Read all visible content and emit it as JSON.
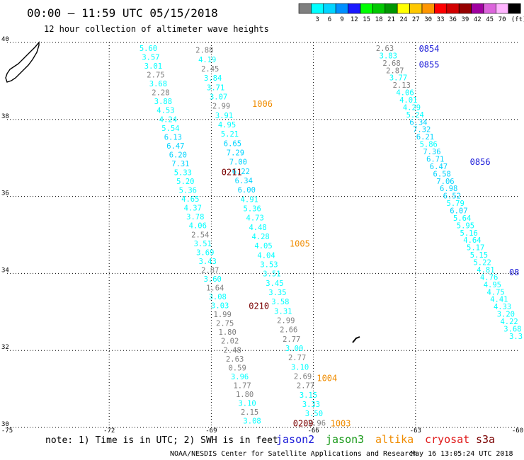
{
  "title": "00:00 – 11:59 UTC 05/15/2018",
  "subtitle": "12 hour collection of altimeter wave heights",
  "note": "note: 1) Time is in UTC; 2) SWH is in feet",
  "credit": "NOAA/NESDIS Center for Satellite Applications and Research",
  "timestamp": "May 16 13:05:24 UTC 2018",
  "satellites": [
    {
      "name": "jason2",
      "color": "#1a1ad8"
    },
    {
      "name": "jason3",
      "color": "#1a9a1a"
    },
    {
      "name": "altika",
      "color": "#f08c00"
    },
    {
      "name": "cryosat",
      "color": "#e01818"
    },
    {
      "name": "s3a",
      "color": "#7a0000"
    }
  ],
  "legend": {
    "unit": "(ft)",
    "bins": [
      {
        "label": "",
        "color": "#7f7f7f"
      },
      {
        "label": "3",
        "color": "#00ffff"
      },
      {
        "label": "6",
        "color": "#00d4ff"
      },
      {
        "label": "9",
        "color": "#0090ff"
      },
      {
        "label": "12",
        "color": "#1a1aff"
      },
      {
        "label": "15",
        "color": "#00ff00"
      },
      {
        "label": "18",
        "color": "#00c800"
      },
      {
        "label": "21",
        "color": "#009600"
      },
      {
        "label": "24",
        "color": "#ffff00"
      },
      {
        "label": "27",
        "color": "#ffc800"
      },
      {
        "label": "30",
        "color": "#ff9600"
      },
      {
        "label": "33",
        "color": "#ff0000"
      },
      {
        "label": "36",
        "color": "#d20000"
      },
      {
        "label": "39",
        "color": "#960000"
      },
      {
        "label": "42",
        "color": "#a000a0"
      },
      {
        "label": "45",
        "color": "#dc64dc"
      },
      {
        "label": "70",
        "color": "#ffb4ff"
      },
      {
        "label": "",
        "color": "#000000"
      }
    ]
  },
  "chart_data": {
    "type": "scatter",
    "xlim": [
      -75,
      -60
    ],
    "ylim": [
      30,
      40
    ],
    "xticks": [
      "-75",
      "-72",
      "-69",
      "-66",
      "-63",
      "-60"
    ],
    "yticks": [
      "40",
      "38",
      "36",
      "34",
      "32",
      "30"
    ],
    "grid": true,
    "track_labels": [
      {
        "text": "0854",
        "x": -62.6,
        "y": 39.76,
        "color": "#1a1ad8"
      },
      {
        "text": "0855",
        "x": -62.6,
        "y": 39.35,
        "color": "#1a1ad8"
      },
      {
        "text": "1006",
        "x": -67.5,
        "y": 38.33,
        "color": "#f08c00"
      },
      {
        "text": "0856",
        "x": -61.1,
        "y": 36.82,
        "color": "#1a1ad8"
      },
      {
        "text": "0211",
        "x": -68.4,
        "y": 36.55,
        "color": "#7a0000"
      },
      {
        "text": "1005",
        "x": -66.4,
        "y": 34.7,
        "color": "#f08c00"
      },
      {
        "text": "08",
        "x": -60.1,
        "y": 33.95,
        "color": "#1a1ad8"
      },
      {
        "text": "0210",
        "x": -67.6,
        "y": 33.08,
        "color": "#7a0000"
      },
      {
        "text": "1004",
        "x": -65.6,
        "y": 31.2,
        "color": "#f08c00"
      },
      {
        "text": "0209",
        "x": -66.3,
        "y": 30.03,
        "color": "#7a0000"
      },
      {
        "text": "1003",
        "x": -65.2,
        "y": 30.03,
        "color": "#f08c00"
      }
    ],
    "tracks": [
      {
        "name": "track-a",
        "x0": -70.85,
        "y0": 39.78,
        "x1": -67.8,
        "y1": 30.1,
        "values": [
          5.6,
          3.57,
          3.01,
          2.75,
          3.68,
          2.28,
          3.88,
          4.53,
          4.24,
          5.54,
          6.13,
          6.47,
          6.2,
          7.31,
          5.33,
          5.2,
          5.36,
          4.65,
          4.37,
          3.78,
          4.06,
          2.54,
          3.51,
          3.69,
          3.43,
          2.87,
          3.6,
          1.64,
          3.08,
          3.03,
          1.99,
          2.75,
          1.8,
          2.02,
          2.48,
          2.63,
          0.59,
          3.96,
          1.77,
          1.8,
          3.1,
          2.15,
          3.08
        ]
      },
      {
        "name": "track-b",
        "x0": -69.2,
        "y0": 39.73,
        "x1": -65.9,
        "y1": 30.05,
        "values": [
          2.88,
          4.19,
          2.45,
          3.84,
          3.71,
          3.07,
          2.99,
          3.91,
          4.95,
          5.21,
          6.65,
          7.29,
          7.0,
          6.22,
          6.34,
          6.0,
          4.91,
          5.36,
          4.73,
          4.48,
          4.28,
          4.05,
          4.04,
          3.53,
          3.51,
          3.45,
          3.35,
          3.58,
          3.31,
          2.99,
          2.66,
          2.77,
          3.0,
          2.77,
          3.1,
          2.69,
          2.77,
          3.15,
          3.33,
          3.5,
          2.96
        ]
      },
      {
        "name": "track-c",
        "x0": -63.9,
        "y0": 39.78,
        "x1": -60.05,
        "y1": 32.3,
        "values": [
          2.63,
          3.83,
          2.68,
          2.87,
          3.77,
          2.13,
          4.06,
          4.01,
          4.29,
          5.24,
          6.34,
          7.32,
          6.21,
          5.86,
          7.36,
          6.71,
          6.47,
          6.58,
          7.06,
          6.98,
          6.52,
          5.79,
          6.07,
          5.64,
          5.95,
          5.16,
          4.64,
          5.17,
          5.15,
          5.22,
          4.81,
          4.76,
          4.95,
          4.75,
          4.41,
          4.33,
          3.2,
          4.22,
          3.68,
          3.3
        ]
      }
    ]
  }
}
